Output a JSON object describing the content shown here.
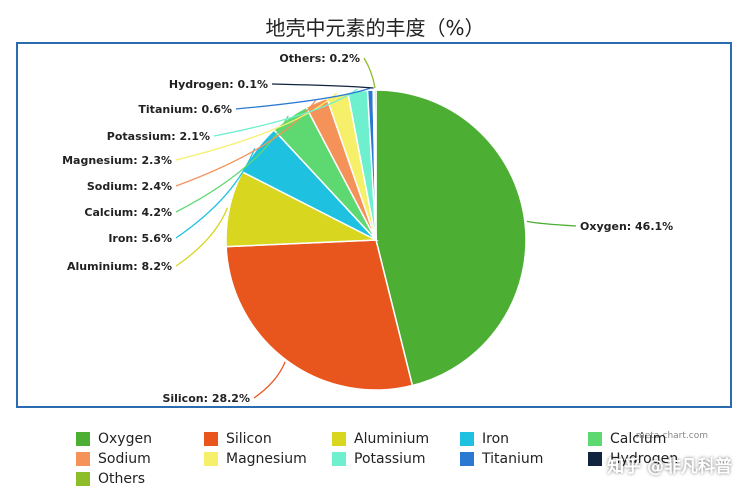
{
  "chart_data": {
    "type": "pie",
    "title": "地壳中元素的丰度（%）",
    "series": [
      {
        "name": "Oxygen",
        "value": 46.1,
        "label": "Oxygen: 46.1%",
        "color": "#4cae33"
      },
      {
        "name": "Silicon",
        "value": 28.2,
        "label": "Silicon: 28.2%",
        "color": "#e8561e"
      },
      {
        "name": "Aluminium",
        "value": 8.2,
        "label": "Aluminium: 8.2%",
        "color": "#d8d61e"
      },
      {
        "name": "Iron",
        "value": 5.6,
        "label": "Iron: 5.6%",
        "color": "#1fc1e0"
      },
      {
        "name": "Calcium",
        "value": 4.2,
        "label": "Calcium: 4.2%",
        "color": "#5ed871"
      },
      {
        "name": "Sodium",
        "value": 2.4,
        "label": "Sodium: 2.4%",
        "color": "#f5925a"
      },
      {
        "name": "Magnesium",
        "value": 2.3,
        "label": "Magnesium: 2.3%",
        "color": "#f6ef6a"
      },
      {
        "name": "Potassium",
        "value": 2.1,
        "label": "Potassium: 2.1%",
        "color": "#6ef0cf"
      },
      {
        "name": "Titanium",
        "value": 0.6,
        "label": "Titanium: 0.6%",
        "color": "#2a78d2"
      },
      {
        "name": "Hydrogen",
        "value": 0.1,
        "label": "Hydrogen: 0.1%",
        "color": "#10233f"
      },
      {
        "name": "Others",
        "value": 0.2,
        "label": "Others: 0.2%",
        "color": "#8dbe2a"
      }
    ],
    "legend_position": "bottom"
  },
  "watermark": "meta-chart.com",
  "overlay_watermark": "知乎 @非凡科普"
}
